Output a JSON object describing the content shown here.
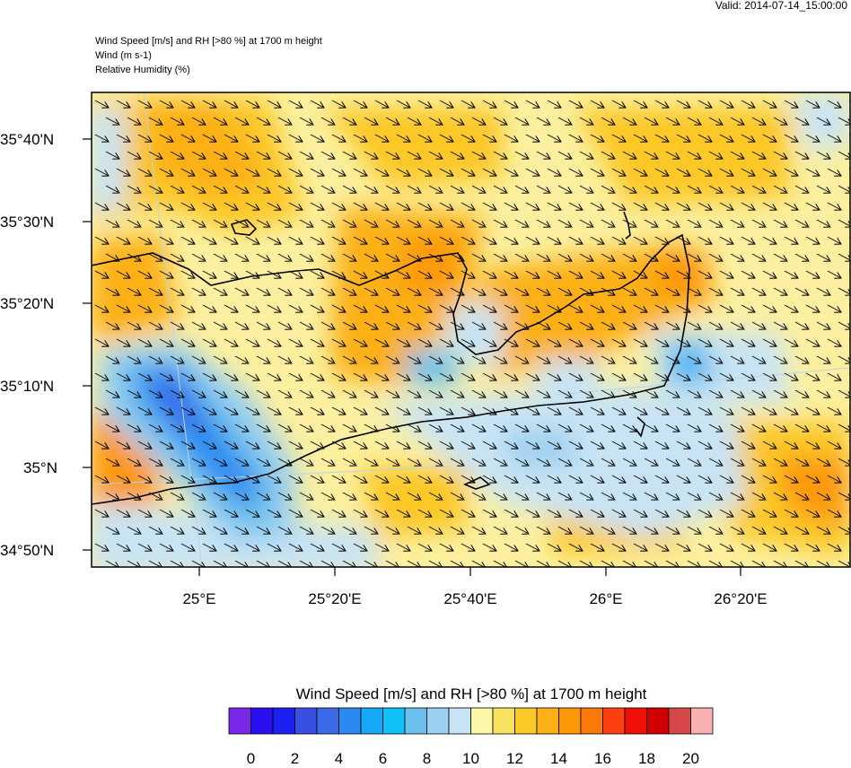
{
  "valid_time": "Valid: 2014-07-14_15:00:00",
  "header": {
    "line1": "Wind Speed [m/s] and RH [>80 %] at 1700 m height",
    "line2": "Wind   (m s-1)",
    "line3": "Relative Humidity   (%)"
  },
  "map": {
    "lat_labels": [
      "35°40'N",
      "35°30'N",
      "35°20'N",
      "35°10'N",
      "35°N",
      "34°50'N"
    ],
    "lon_labels": [
      "25°E",
      "25°20'E",
      "25°40'E",
      "26°E",
      "26°20'E"
    ]
  },
  "colorbar": {
    "title": "Wind Speed [m/s] and RH [>80 %] at 1700 m height",
    "colors": [
      "#7a28e8",
      "#2a10ee",
      "#1a20f0",
      "#3850e0",
      "#3a6ae8",
      "#2a8af0",
      "#18a8f8",
      "#10c0f8",
      "#6cc0ee",
      "#9cd0f0",
      "#c8e4f4",
      "#fcf8a8",
      "#f8e060",
      "#fcc828",
      "#fcb018",
      "#fc9808",
      "#fc7808",
      "#fc4010",
      "#f01008",
      "#d00000",
      "#d84848",
      "#f8b0b0"
    ],
    "labels": [
      "0",
      "2",
      "4",
      "6",
      "8",
      "10",
      "12",
      "14",
      "16",
      "18",
      "20"
    ]
  }
}
